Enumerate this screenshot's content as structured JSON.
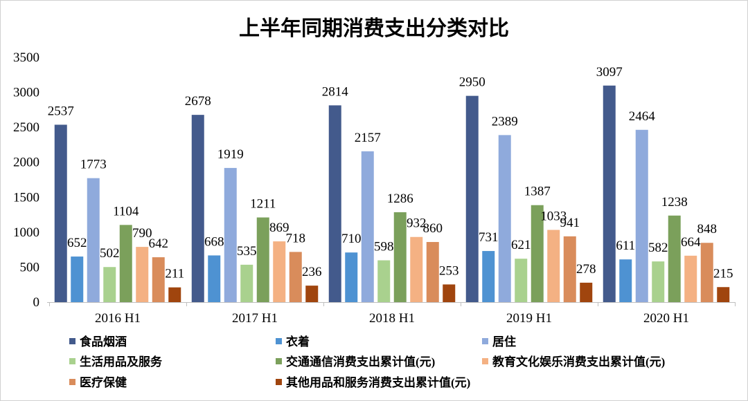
{
  "chart_data": {
    "type": "bar",
    "title": "上半年同期消费支出分类对比",
    "categories": [
      "2016 H1",
      "2017 H1",
      "2018 H1",
      "2019 H1",
      "2020 H1"
    ],
    "ylim": [
      0,
      3500
    ],
    "y_ticks": [
      0,
      500,
      1000,
      1500,
      2000,
      2500,
      3000,
      3500
    ],
    "grid": false,
    "legend_position": "bottom",
    "series": [
      {
        "name": "食品烟酒",
        "color": "#435A8C",
        "values": [
          2537,
          2678,
          2814,
          2950,
          3097
        ]
      },
      {
        "name": "衣着",
        "color": "#4E92D2",
        "values": [
          652,
          668,
          710,
          731,
          611
        ]
      },
      {
        "name": "居住",
        "color": "#8FAADC",
        "values": [
          1773,
          1919,
          2157,
          2389,
          2464
        ]
      },
      {
        "name": "生活用品及服务",
        "color": "#A9D18E",
        "values": [
          502,
          535,
          598,
          621,
          582
        ]
      },
      {
        "name": "交通通信消费支出累计值(元)",
        "color": "#7BA05B",
        "values": [
          1104,
          1211,
          1286,
          1387,
          1238
        ]
      },
      {
        "name": "教育文化娱乐消费支出累计值(元)",
        "color": "#F4B183",
        "values": [
          790,
          869,
          932,
          1033,
          664
        ]
      },
      {
        "name": "医疗保健",
        "color": "#D98C5B",
        "values": [
          642,
          718,
          860,
          941,
          848
        ]
      },
      {
        "name": "其他用品和服务消费支出累计值(元)",
        "color": "#A0450E",
        "values": [
          211,
          236,
          253,
          278,
          215
        ]
      }
    ]
  }
}
